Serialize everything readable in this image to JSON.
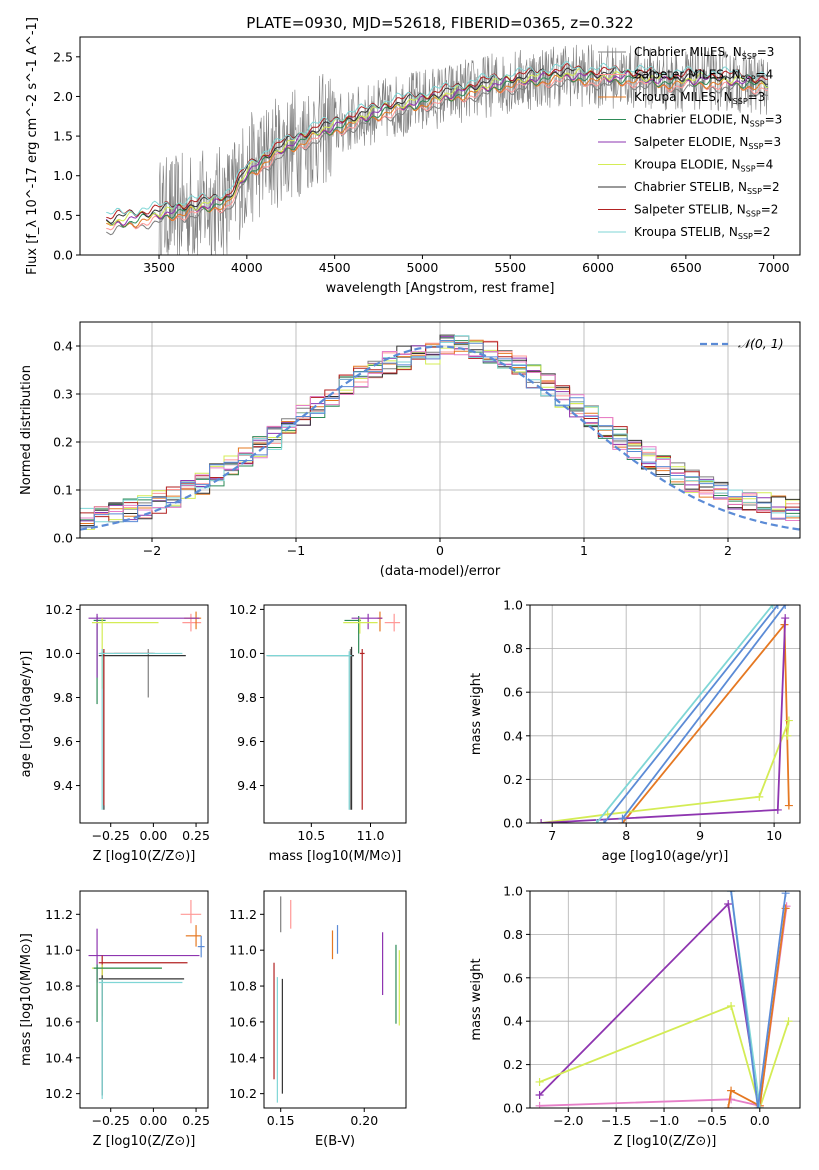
{
  "figure": {
    "title": "PLATE=0930, MJD=52618, FIBERID=0365, z=0.322"
  },
  "colors": {
    "Chabrier MILES": "#7f7f7f",
    "Salpeter MILES": "#ff9896",
    "Kroupa MILES": "#e57822",
    "Chabrier ELODIE": "#2e8b57",
    "Salpeter ELODIE": "#8e35b0",
    "Kroupa ELODIE": "#d4ec55",
    "Chabrier STELIB": "#333333",
    "Salpeter STELIB": "#b22222",
    "Kroupa STELIB": "#7fd6d6",
    "blue": "#5b8bd6",
    "pink": "#e67fc8",
    "gaussian": "#5b8bd6"
  },
  "chart_data": [
    {
      "id": "spectrum",
      "type": "line",
      "title": "PLATE=0930, MJD=52618, FIBERID=0365, z=0.322",
      "xlabel": "wavelength [Angstrom, rest frame]",
      "ylabel": "Flux [f_λ 10^-17 erg cm^-2 s^-1 A^-1]",
      "xlim": [
        3050,
        7150
      ],
      "ylim": [
        0,
        2.75
      ],
      "xticks": [
        3500,
        4000,
        4500,
        5000,
        5500,
        6000,
        6500,
        7000
      ],
      "yticks": [
        0.0,
        0.5,
        1.0,
        1.5,
        2.0,
        2.5
      ],
      "grid": false,
      "legend_position": "top-right",
      "continuum_x": [
        3200,
        3500,
        3700,
        3900,
        4000,
        4200,
        4400,
        4600,
        4800,
        5000,
        5200,
        5400,
        5600,
        5800,
        6000,
        6200,
        6400,
        6600,
        6800,
        6970
      ],
      "continuum_y": [
        0.4,
        0.52,
        0.6,
        0.7,
        1.05,
        1.35,
        1.55,
        1.7,
        1.85,
        1.95,
        2.05,
        2.15,
        2.22,
        2.28,
        2.25,
        2.25,
        2.2,
        2.22,
        2.2,
        2.15
      ],
      "data_series": {
        "name": "data",
        "x_range": [
          3500,
          6970
        ],
        "scatter": 0.45
      },
      "series": [
        {
          "name": "Chabrier MILES",
          "label_main": "Chabrier MILES, N",
          "label_sub": "SSP",
          "label_tail": "=3"
        },
        {
          "name": "Salpeter MILES",
          "label_main": "Salpeter MILES, N",
          "label_sub": "SSP",
          "label_tail": "=4"
        },
        {
          "name": "Kroupa MILES",
          "label_main": "Kroupa MILES, N",
          "label_sub": "SSP",
          "label_tail": "=3"
        },
        {
          "name": "Chabrier ELODIE",
          "label_main": "Chabrier ELODIE, N",
          "label_sub": "SSP",
          "label_tail": "=3"
        },
        {
          "name": "Salpeter ELODIE",
          "label_main": "Salpeter ELODIE, N",
          "label_sub": "SSP",
          "label_tail": "=3"
        },
        {
          "name": "Kroupa ELODIE",
          "label_main": "Kroupa ELODIE, N",
          "label_sub": "SSP",
          "label_tail": "=4"
        },
        {
          "name": "Chabrier STELIB",
          "label_main": "Chabrier STELIB, N",
          "label_sub": "SSP",
          "label_tail": "=2"
        },
        {
          "name": "Salpeter STELIB",
          "label_main": "Salpeter STELIB, N",
          "label_sub": "SSP",
          "label_tail": "=2"
        },
        {
          "name": "Kroupa STELIB",
          "label_main": "Kroupa STELIB, N",
          "label_sub": "SSP",
          "label_tail": "=2"
        }
      ]
    },
    {
      "id": "residuals",
      "type": "area",
      "xlabel": "(data-model)/error",
      "ylabel": "Normed distribution",
      "xlim": [
        -2.5,
        2.5
      ],
      "ylim": [
        0,
        0.45
      ],
      "xticks": [
        -2,
        -1,
        0,
        1,
        2
      ],
      "yticks": [
        0.0,
        0.1,
        0.2,
        0.3,
        0.4
      ],
      "grid": true,
      "legend": "𝒩(0, 1)",
      "legend_position": "top-right",
      "bin_width": 0.1
    },
    {
      "id": "age-vs-Z",
      "type": "scatter",
      "xlabel": "Z [log10(Z/Z⊙)]",
      "ylabel": "age [log10(age/yr)]",
      "xlim": [
        -0.43,
        0.32
      ],
      "ylim": [
        9.23,
        10.22
      ],
      "xticks": [
        -0.25,
        0.0,
        0.25
      ],
      "yticks": [
        9.4,
        9.6,
        9.8,
        10.0,
        10.2
      ],
      "points": [
        {
          "s": "Chabrier MILES",
          "x": -0.03,
          "y": 10.0,
          "ex": [
            0.2,
            0.03
          ],
          "ey": [
            0.2,
            0.02
          ]
        },
        {
          "s": "Salpeter MILES",
          "x": 0.22,
          "y": 10.14,
          "ex": [
            0.05,
            0.06
          ],
          "ey": [
            0.04,
            0.04
          ]
        },
        {
          "s": "Kroupa MILES",
          "x": 0.25,
          "y": 10.16,
          "ex": [
            0.07,
            0.03
          ],
          "ey": [
            0.05,
            0.03
          ]
        },
        {
          "s": "Chabrier ELODIE",
          "x": -0.33,
          "y": 10.15,
          "ex": [
            0.02,
            0.05
          ],
          "ey": [
            0.38,
            0.02
          ]
        },
        {
          "s": "Salpeter ELODIE",
          "x": -0.33,
          "y": 10.16,
          "ex": [
            0.05,
            0.6
          ],
          "ey": [
            0.27,
            0.02
          ]
        },
        {
          "s": "Kroupa ELODIE",
          "x": -0.3,
          "y": 10.14,
          "ex": [
            0.06,
            0.33
          ],
          "ey": [
            0.3,
            0.02
          ]
        },
        {
          "s": "Chabrier STELIB",
          "x": -0.29,
          "y": 9.99,
          "ex": [
            0.03,
            0.48
          ],
          "ey": [
            0.7,
            0.02
          ]
        },
        {
          "s": "Salpeter STELIB",
          "x": -0.29,
          "y": 10.0,
          "ex": [
            0.02,
            0.3
          ],
          "ey": [
            0.69,
            0.02
          ]
        },
        {
          "s": "Kroupa STELIB",
          "x": -0.3,
          "y": 10.0,
          "ex": [
            0.02,
            0.47
          ],
          "ey": [
            0.71,
            0.02
          ]
        }
      ]
    },
    {
      "id": "age-vs-mass",
      "type": "scatter",
      "xlabel": "mass [log10(M/M⊙)]",
      "ylabel": "",
      "xlim": [
        10.1,
        11.3
      ],
      "ylim": [
        9.23,
        10.22
      ],
      "xticks": [
        10.5,
        11.0
      ],
      "yticks": [
        9.4,
        9.6,
        9.8,
        10.0,
        10.2
      ],
      "points": [
        {
          "s": "Chabrier MILES",
          "x": 10.83,
          "y": 9.99,
          "ex": [
            0.7,
            0.03
          ],
          "ey": [
            0.7,
            0.03
          ]
        },
        {
          "s": "Salpeter MILES",
          "x": 11.2,
          "y": 10.14,
          "ex": [
            0.08,
            0.05
          ],
          "ey": [
            0.04,
            0.04
          ]
        },
        {
          "s": "Kroupa MILES",
          "x": 11.08,
          "y": 10.16,
          "ex": [
            0.02,
            0.02
          ],
          "ey": [
            0.06,
            0.03
          ]
        },
        {
          "s": "Chabrier ELODIE",
          "x": 10.9,
          "y": 10.15,
          "ex": [
            0.12,
            0.02
          ],
          "ey": [
            0.15,
            0.02
          ]
        },
        {
          "s": "Salpeter ELODIE",
          "x": 10.98,
          "y": 10.16,
          "ex": [
            0.14,
            0.12
          ],
          "ey": [
            0.05,
            0.02
          ]
        },
        {
          "s": "Kroupa ELODIE",
          "x": 10.91,
          "y": 10.14,
          "ex": [
            0.14,
            0.15
          ],
          "ey": [
            0.05,
            0.02
          ]
        },
        {
          "s": "Chabrier STELIB",
          "x": 10.84,
          "y": 9.99,
          "ex": [
            0.02,
            0.02
          ],
          "ey": [
            0.7,
            0.04
          ]
        },
        {
          "s": "Salpeter STELIB",
          "x": 10.93,
          "y": 10.0,
          "ex": [
            0.02,
            0.02
          ],
          "ey": [
            0.71,
            0.02
          ]
        },
        {
          "s": "Kroupa STELIB",
          "x": 10.82,
          "y": 9.99,
          "ex": [
            0.7,
            0.02
          ],
          "ey": [
            0.7,
            0.02
          ]
        }
      ]
    },
    {
      "id": "weight-vs-age",
      "type": "line",
      "xlabel": "age [log10(age/yr)]",
      "ylabel": "mass weight",
      "xlim": [
        6.7,
        10.35
      ],
      "ylim": [
        0,
        1.0
      ],
      "xticks": [
        7,
        8,
        9,
        10
      ],
      "yticks": [
        0.0,
        0.2,
        0.4,
        0.6,
        0.8,
        1.0
      ],
      "grid": true,
      "lines": [
        {
          "s": "pink",
          "x": [
            6.8,
            10.12,
            10.18
          ],
          "y": [
            0.0,
            0.02,
            0.96
          ]
        },
        {
          "s": "Kroupa MILES",
          "x": 7.95,
          "y2": 0,
          "x2": 10.15,
          "yy": [
            0.0,
            0.91
          ],
          "raw": [
            [
              7.95,
              0.0
            ],
            [
              10.14,
              0.91
            ],
            [
              10.2,
              0.08
            ]
          ]
        },
        {
          "s": "Kroupa ELODIE",
          "raw": [
            [
              6.85,
              0.0
            ],
            [
              7.75,
              0.04
            ],
            [
              9.8,
              0.12
            ],
            [
              10.2,
              0.47
            ],
            [
              10.18,
              0.4
            ]
          ]
        },
        {
          "s": "Salpeter ELODIE",
          "raw": [
            [
              6.85,
              0.0
            ],
            [
              10.05,
              0.06
            ],
            [
              10.15,
              0.94
            ]
          ]
        },
        {
          "s": "blue",
          "raw": [
            [
              7.95,
              0.02
            ],
            [
              10.15,
              1.0
            ]
          ]
        },
        {
          "s": "Kroupa STELIB",
          "raw": [
            [
              7.6,
              0.0
            ],
            [
              9.98,
              1.0
            ]
          ]
        },
        {
          "s": "blue",
          "raw": [
            [
              7.7,
              0.0
            ],
            [
              10.05,
              1.0
            ]
          ]
        }
      ]
    },
    {
      "id": "mass-vs-Z",
      "type": "scatter",
      "xlabel": "Z [log10(Z/Z⊙)]",
      "ylabel": "mass [log10(M/M⊙)]",
      "xlim": [
        -0.43,
        0.32
      ],
      "ylim": [
        10.12,
        11.33
      ],
      "xticks": [
        -0.25,
        0.0,
        0.25
      ],
      "yticks": [
        10.2,
        10.4,
        10.6,
        10.8,
        11.0,
        11.2
      ],
      "points": [
        {
          "s": "Salpeter MILES",
          "x": 0.22,
          "y": 11.2,
          "ex": [
            0.06,
            0.06
          ],
          "ey": [
            0.05,
            0.08
          ]
        },
        {
          "s": "Kroupa MILES",
          "x": 0.25,
          "y": 11.08,
          "ex": [
            0.06,
            0.03
          ],
          "ey": [
            0.06,
            0.06
          ]
        },
        {
          "s": "Salpeter ELODIE",
          "x": -0.33,
          "y": 10.97,
          "ex": [
            0.05,
            0.6
          ],
          "ey": [
            0.15,
            0.15
          ]
        },
        {
          "s": "Salpeter STELIB",
          "x": -0.3,
          "y": 10.93,
          "ex": [
            0.02,
            0.5
          ],
          "ey": [
            0.3,
            0.04
          ]
        },
        {
          "s": "Kroupa ELODIE",
          "x": -0.3,
          "y": 10.9,
          "ex": [
            0.06,
            0.35
          ],
          "ey": [
            0.3,
            0.02
          ]
        },
        {
          "s": "Chabrier ELODIE",
          "x": -0.33,
          "y": 10.9,
          "ex": [
            0.02,
            0.38
          ],
          "ey": [
            0.3,
            0.02
          ]
        },
        {
          "s": "Chabrier STELIB",
          "x": -0.3,
          "y": 10.84,
          "ex": [
            0.02,
            0.48
          ],
          "ey": [
            0.65,
            0.02
          ]
        },
        {
          "s": "Kroupa STELIB",
          "x": -0.3,
          "y": 10.82,
          "ex": [
            0.02,
            0.47
          ],
          "ey": [
            0.65,
            0.02
          ]
        },
        {
          "s": "blue",
          "x": 0.28,
          "y": 11.02,
          "ex": [
            0.02,
            0.02
          ],
          "ey": [
            0.06,
            0.06
          ]
        }
      ]
    },
    {
      "id": "mass-vs-ebv",
      "type": "scatter",
      "xlabel": "E(B-V)",
      "ylabel": "",
      "xlim": [
        0.14,
        0.225
      ],
      "ylim": [
        10.12,
        11.33
      ],
      "xticks": [
        0.15,
        0.2
      ],
      "yticks": [
        10.2,
        10.4,
        10.6,
        10.8,
        11.0,
        11.2
      ],
      "points": [
        {
          "s": "Kroupa MILES",
          "x": 0.181,
          "y": 11.03,
          "ex": [
            0,
            0
          ],
          "ey": [
            0.08,
            0.08
          ]
        },
        {
          "s": "blue",
          "x": 0.184,
          "y": 11.06,
          "ex": [
            0,
            0
          ],
          "ey": [
            0.08,
            0.08
          ]
        },
        {
          "s": "Salpeter ELODIE",
          "x": 0.211,
          "y": 10.9,
          "ex": [
            0,
            0
          ],
          "ey": [
            0.15,
            0.2
          ]
        },
        {
          "s": "Kroupa ELODIE",
          "x": 0.221,
          "y": 10.8,
          "ex": [
            0,
            0
          ],
          "ey": [
            0.22,
            0.2
          ]
        },
        {
          "s": "Chabrier ELODIE",
          "x": 0.219,
          "y": 10.81,
          "ex": [
            0,
            0
          ],
          "ey": [
            0.22,
            0.22
          ]
        },
        {
          "s": "Salpeter STELIB",
          "x": 0.146,
          "y": 10.88,
          "ex": [
            0,
            0
          ],
          "ey": [
            0.6,
            0.05
          ]
        },
        {
          "s": "Chabrier STELIB",
          "x": 0.151,
          "y": 10.5,
          "ex": [
            0,
            0
          ],
          "ey": [
            0.3,
            0.34
          ]
        },
        {
          "s": "Kroupa STELIB",
          "x": 0.148,
          "y": 10.5,
          "ex": [
            0,
            0
          ],
          "ey": [
            0.35,
            0.35
          ]
        },
        {
          "s": "Salpeter MILES",
          "x": 0.156,
          "y": 11.2,
          "ex": [
            0,
            0
          ],
          "ey": [
            0.08,
            0.08
          ]
        },
        {
          "s": "Chabrier MILES",
          "x": 0.15,
          "y": 11.2,
          "ex": [
            0,
            0
          ],
          "ey": [
            0.1,
            0.1
          ]
        }
      ]
    },
    {
      "id": "weight-vs-Z",
      "type": "line",
      "xlabel": "Z [log10(Z/Z⊙)]",
      "ylabel": "mass weight",
      "xlim": [
        -2.4,
        0.42
      ],
      "ylim": [
        0,
        1.0
      ],
      "xticks": [
        -2.0,
        -1.5,
        -1.0,
        -0.5,
        0.0
      ],
      "yticks": [
        0.0,
        0.2,
        0.4,
        0.6,
        0.8,
        1.0
      ],
      "grid": true,
      "lines": [
        {
          "s": "Salpeter ELODIE",
          "raw": [
            [
              -2.3,
              0.06
            ],
            [
              -0.33,
              0.94
            ],
            [
              0.0,
              0.0
            ]
          ]
        },
        {
          "s": "Kroupa ELODIE",
          "raw": [
            [
              -2.3,
              0.12
            ],
            [
              -0.3,
              0.47
            ],
            [
              0.0,
              0.0
            ],
            [
              0.3,
              0.4
            ]
          ]
        },
        {
          "s": "pink",
          "raw": [
            [
              -2.3,
              0.01
            ],
            [
              -0.3,
              0.04
            ],
            [
              0.0,
              0.01
            ],
            [
              0.28,
              0.93
            ]
          ]
        },
        {
          "s": "Kroupa MILES",
          "raw": [
            [
              -0.33,
              0.0
            ],
            [
              -0.3,
              0.08
            ],
            [
              0.0,
              0.01
            ],
            [
              0.27,
              0.92
            ]
          ]
        },
        {
          "s": "Kroupa STELIB",
          "raw": [
            [
              -0.3,
              1.0
            ],
            [
              0.0,
              0.0
            ]
          ]
        },
        {
          "s": "blue",
          "raw": [
            [
              -0.3,
              1.0
            ],
            [
              -0.02,
              0.0
            ],
            [
              0.27,
              0.99
            ]
          ]
        }
      ]
    }
  ]
}
